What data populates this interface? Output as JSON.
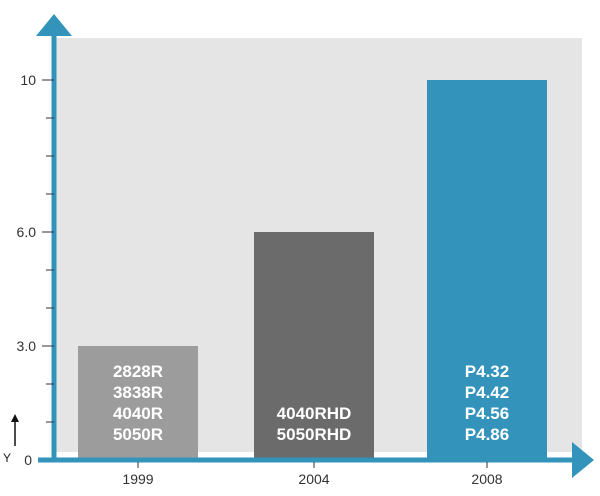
{
  "chart_data": {
    "type": "bar",
    "categories": [
      "1999",
      "2004",
      "2008"
    ],
    "values": [
      3.0,
      6.0,
      10.0
    ],
    "title": "",
    "xlabel": "",
    "ylabel": "Y",
    "ylim": [
      0,
      11
    ],
    "yticks": [
      {
        "value": 0,
        "label": "0"
      },
      {
        "value": 3.0,
        "label": "3.0"
      },
      {
        "value": 6.0,
        "label": "6.0"
      },
      {
        "value": 10,
        "label": "10"
      }
    ],
    "minor_ticks": [
      1,
      2,
      4,
      5,
      7,
      8,
      9
    ],
    "bar_labels": [
      [
        "2828R",
        "3838R",
        "4040R",
        "5050R"
      ],
      [
        "4040RHD",
        "5050RHD"
      ],
      [
        "P4.32",
        "P4.42",
        "P4.56",
        "P4.86"
      ]
    ],
    "bar_colors": [
      "#9c9c9c",
      "#6b6b6b",
      "#3393bb"
    ],
    "plot_background": "#e5e5e5",
    "axis_color": "#3393bb",
    "grid": false,
    "legend": "none"
  }
}
